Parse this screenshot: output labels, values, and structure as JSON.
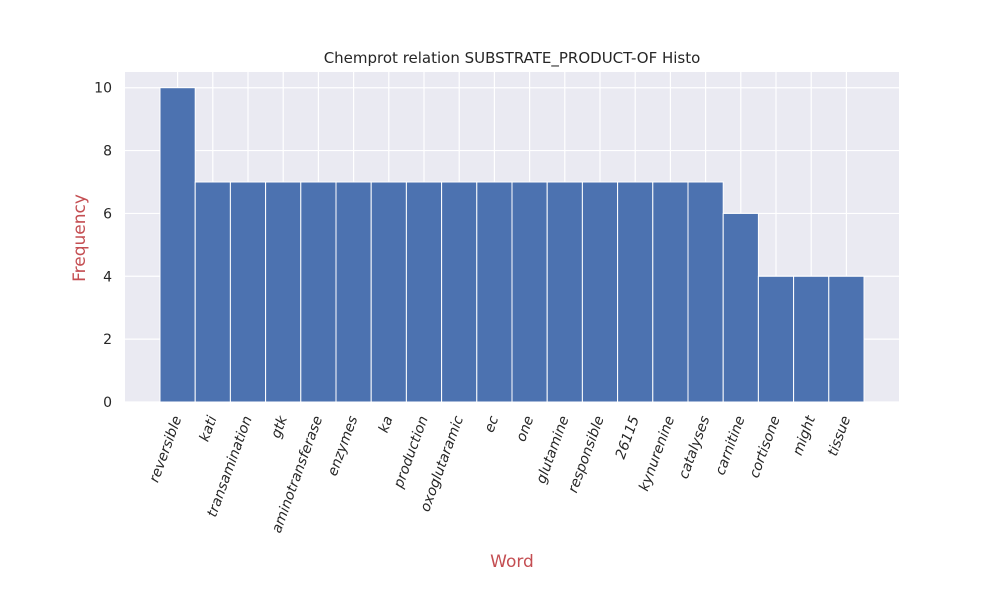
{
  "chart_data": {
    "type": "bar",
    "title": "Chemprot relation SUBSTRATE_PRODUCT-OF Histo",
    "xlabel": "Word",
    "ylabel": "Frequency",
    "categories": [
      "reversible",
      "kati",
      "transamination",
      "gtk",
      "aminotransferase",
      "enzymes",
      "ka",
      "production",
      "oxoglutaramic",
      "ec",
      "one",
      "glutamine",
      "responsible",
      "26115",
      "kynurenine",
      "catalyses",
      "carnitine",
      "cortisone",
      "might",
      "tissue"
    ],
    "values": [
      10,
      7,
      7,
      7,
      7,
      7,
      7,
      7,
      7,
      7,
      7,
      7,
      7,
      7,
      7,
      7,
      6,
      4,
      4,
      4
    ],
    "yticks": [
      0,
      2,
      4,
      6,
      8,
      10
    ],
    "ylim": [
      0,
      10.5
    ],
    "grid": true,
    "colors": {
      "bar": "#4c72b0",
      "background": "#eaeaf2",
      "grid": "#ffffff",
      "axis_label": "#c44e52"
    }
  }
}
